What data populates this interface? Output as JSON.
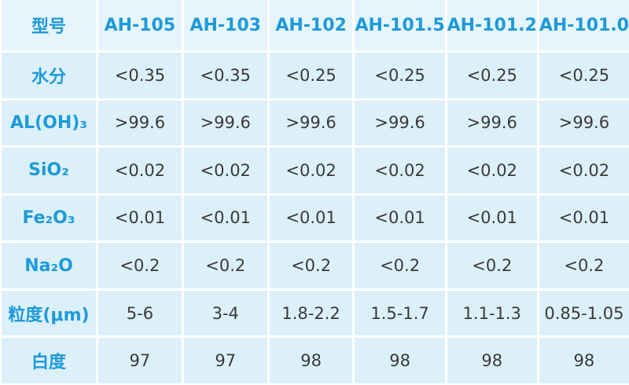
{
  "table": {
    "header": [
      "型号",
      "AH-105",
      "AH-103",
      "AH-102",
      "AH-101.5",
      "AH-101.2",
      "AH-101.0"
    ],
    "rows": [
      [
        "水分",
        "<0.35",
        "<0.35",
        "<0.25",
        "<0.25",
        "<0.25",
        "<0.25"
      ],
      [
        "AL(OH)₃",
        ">99.6",
        ">99.6",
        ">99.6",
        ">99.6",
        ">99.6",
        ">99.6"
      ],
      [
        "SiO₂",
        "<0.02",
        "<0.02",
        "<0.02",
        "<0.02",
        "<0.02",
        "<0.02"
      ],
      [
        "Fe₂O₃",
        "<0.01",
        "<0.01",
        "<0.01",
        "<0.01",
        "<0.01",
        "<0.01"
      ],
      [
        "Na₂O",
        "<0.2",
        "<0.2",
        "<0.2",
        "<0.2",
        "<0.2",
        "<0.2"
      ],
      [
        "粒度(μm)",
        "5-6",
        "3-4",
        "1.8-2.2",
        "1.5-1.7",
        "1.1-1.3",
        "0.85-1.05"
      ],
      [
        "白度",
        "97",
        "97",
        "98",
        "98",
        "98",
        "98"
      ]
    ]
  }
}
